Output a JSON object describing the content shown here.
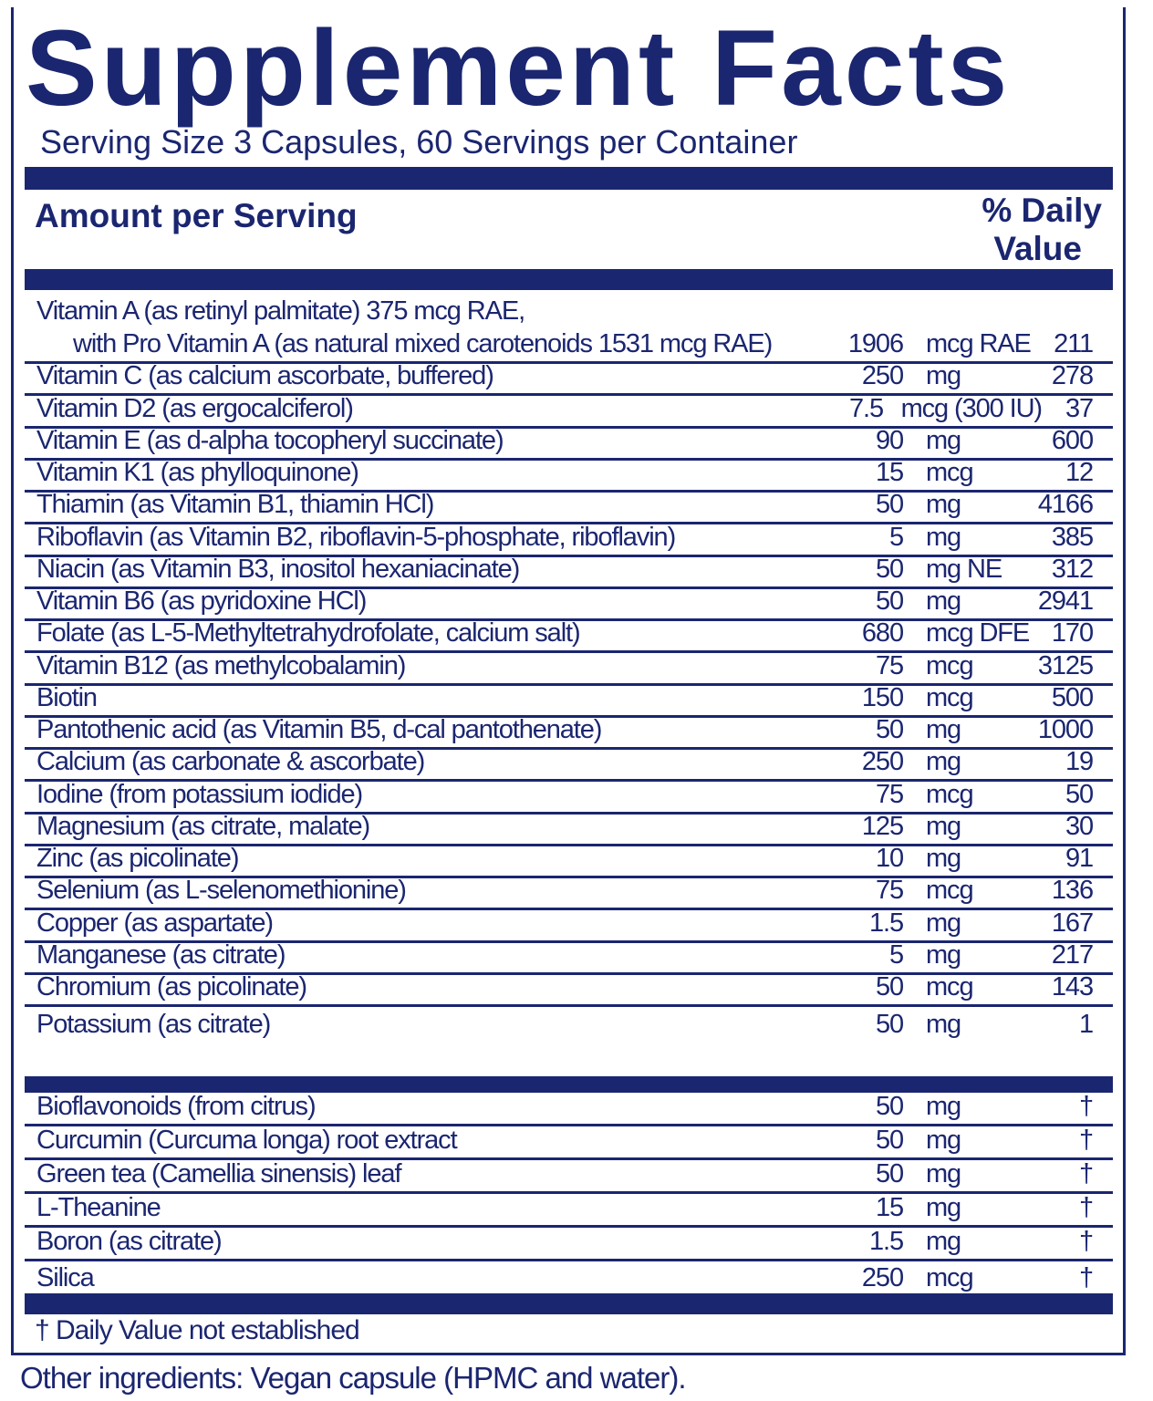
{
  "title": "Supplement Facts",
  "serving": "Serving Size 3 Capsules, 60 Servings per Container",
  "header": {
    "amount": "Amount per Serving",
    "dv_line1": "% Daily",
    "dv_line2": "Value"
  },
  "brand_color": "#1b2670",
  "vitamin_a": {
    "line1": "Vitamin A (as retinyl palmitate) 375 mcg RAE,",
    "line2": "with Pro Vitamin A (as natural mixed carotenoids 1531 mcg RAE)",
    "amount": "1906",
    "unit": "mcg RAE",
    "dv": "211"
  },
  "rows": [
    {
      "name": "Vitamin C (as calcium ascorbate, buffered)",
      "amount": "250",
      "unit": "mg",
      "dv": "278"
    },
    {
      "name": "Vitamin D2 (as ergocalciferol)",
      "amount": "7.5",
      "unit": "mcg (300 IU)",
      "dv": "37"
    },
    {
      "name": "Vitamin E (as d-alpha tocopheryl succinate)",
      "amount": "90",
      "unit": "mg",
      "dv": "600"
    },
    {
      "name": "Vitamin K1 (as phylloquinone)",
      "amount": "15",
      "unit": "mcg",
      "dv": "12"
    },
    {
      "name": "Thiamin (as Vitamin B1, thiamin HCl)",
      "amount": "50",
      "unit": "mg",
      "dv": "4166"
    },
    {
      "name": "Riboflavin (as Vitamin B2, riboflavin-5-phosphate, riboflavin)",
      "amount": "5",
      "unit": "mg",
      "dv": "385"
    },
    {
      "name": "Niacin (as Vitamin B3, inositol hexaniacinate)",
      "amount": "50",
      "unit": "mg NE",
      "dv": "312"
    },
    {
      "name": "Vitamin B6 (as pyridoxine HCl)",
      "amount": "50",
      "unit": "mg",
      "dv": "2941"
    },
    {
      "name": "Folate (as L-5-Methyltetrahydrofolate, calcium salt)",
      "amount": "680",
      "unit": "mcg DFE",
      "dv": "170"
    },
    {
      "name": "Vitamin B12 (as methylcobalamin)",
      "amount": "75",
      "unit": "mcg",
      "dv": "3125"
    },
    {
      "name": "Biotin",
      "amount": "150",
      "unit": "mcg",
      "dv": "500"
    },
    {
      "name": "Pantothenic acid (as Vitamin B5, d-cal pantothenate)",
      "amount": "50",
      "unit": "mg",
      "dv": "1000"
    },
    {
      "name": "Calcium (as carbonate & ascorbate)",
      "amount": "250",
      "unit": "mg",
      "dv": "19"
    },
    {
      "name": "Iodine (from potassium iodide)",
      "amount": "75",
      "unit": "mcg",
      "dv": "50"
    },
    {
      "name": "Magnesium (as citrate, malate)",
      "amount": "125",
      "unit": "mg",
      "dv": "30"
    },
    {
      "name": "Zinc (as picolinate)",
      "amount": "10",
      "unit": "mg",
      "dv": "91"
    },
    {
      "name": "Selenium (as L-selenomethionine)",
      "amount": "75",
      "unit": "mcg",
      "dv": "136"
    },
    {
      "name": "Copper (as aspartate)",
      "amount": "1.5",
      "unit": "mg",
      "dv": "167"
    },
    {
      "name": "Manganese (as citrate)",
      "amount": "5",
      "unit": "mg",
      "dv": "217"
    },
    {
      "name": "Chromium (as picolinate)",
      "amount": "50",
      "unit": "mcg",
      "dv": "143"
    },
    {
      "name": "Potassium (as citrate)",
      "amount": "50",
      "unit": "mg",
      "dv": "1"
    }
  ],
  "other_rows": [
    {
      "name": "Bioflavonoids (from citrus)",
      "amount": "50",
      "unit": "mg",
      "dv": "†"
    },
    {
      "name": "Curcumin (Curcuma longa) root extract",
      "amount": "50",
      "unit": "mg",
      "dv": "†"
    },
    {
      "name": "Green tea (Camellia sinensis) leaf",
      "amount": "50",
      "unit": "mg",
      "dv": "†"
    },
    {
      "name": "L-Theanine",
      "amount": "15",
      "unit": "mg",
      "dv": "†"
    },
    {
      "name": "Boron (as citrate)",
      "amount": "1.5",
      "unit": "mg",
      "dv": "†"
    },
    {
      "name": "Silica",
      "amount": "250",
      "unit": "mcg",
      "dv": "†"
    }
  ],
  "footnote": "† Daily Value not established",
  "other_ingredients": "Other ingredients: Vegan capsule (HPMC and water)."
}
